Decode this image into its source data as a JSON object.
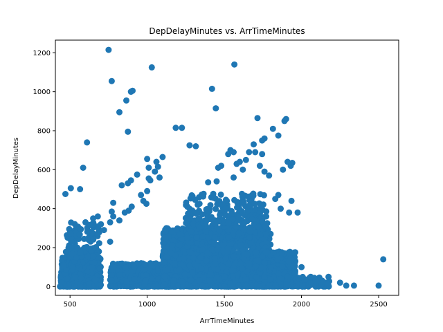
{
  "chart_data": {
    "type": "scatter",
    "title": "DepDelayMinutes vs. ArrTimeMinutes",
    "xlabel": "ArrTimeMinutes",
    "ylabel": "DepDelayMinutes",
    "xlim": [
      405,
      2630
    ],
    "ylim": [
      -45,
      1265
    ],
    "xticks": [
      500,
      1000,
      1500,
      2000,
      2500
    ],
    "yticks": [
      0,
      200,
      400,
      600,
      800,
      1000,
      1200
    ],
    "grid": false,
    "marker_color": "#1f77b4",
    "clusters": [
      {
        "x_range": [
          440,
          700
        ],
        "y_range": [
          0,
          150
        ],
        "count": 700
      },
      {
        "x_range": [
          470,
          690
        ],
        "y_range": [
          150,
          330
        ],
        "count": 120
      },
      {
        "x_range": [
          760,
          1150
        ],
        "y_range": [
          0,
          120
        ],
        "count": 600
      },
      {
        "x_range": [
          1100,
          1800
        ],
        "y_range": [
          0,
          300
        ],
        "count": 1800
      },
      {
        "x_range": [
          1250,
          1780
        ],
        "y_range": [
          250,
          480
        ],
        "count": 400
      },
      {
        "x_range": [
          1700,
          1960
        ],
        "y_range": [
          0,
          180
        ],
        "count": 500
      },
      {
        "x_range": [
          1950,
          2180
        ],
        "y_range": [
          0,
          50
        ],
        "count": 60
      }
    ],
    "points": [
      {
        "x": 750,
        "y": 1215
      },
      {
        "x": 770,
        "y": 1055
      },
      {
        "x": 1030,
        "y": 1125
      },
      {
        "x": 1565,
        "y": 1140
      },
      {
        "x": 895,
        "y": 1000
      },
      {
        "x": 905,
        "y": 1005
      },
      {
        "x": 1420,
        "y": 1015
      },
      {
        "x": 1445,
        "y": 915
      },
      {
        "x": 820,
        "y": 895
      },
      {
        "x": 865,
        "y": 955
      },
      {
        "x": 875,
        "y": 795
      },
      {
        "x": 1185,
        "y": 815
      },
      {
        "x": 1225,
        "y": 815
      },
      {
        "x": 1275,
        "y": 725
      },
      {
        "x": 1315,
        "y": 720
      },
      {
        "x": 610,
        "y": 740
      },
      {
        "x": 585,
        "y": 610
      },
      {
        "x": 470,
        "y": 475
      },
      {
        "x": 505,
        "y": 505
      },
      {
        "x": 565,
        "y": 500
      },
      {
        "x": 1715,
        "y": 865
      },
      {
        "x": 1900,
        "y": 860
      },
      {
        "x": 1890,
        "y": 850
      },
      {
        "x": 1850,
        "y": 775
      },
      {
        "x": 1815,
        "y": 810
      },
      {
        "x": 1760,
        "y": 760
      },
      {
        "x": 1745,
        "y": 750
      },
      {
        "x": 1690,
        "y": 730
      },
      {
        "x": 1910,
        "y": 640
      },
      {
        "x": 1930,
        "y": 620
      },
      {
        "x": 1940,
        "y": 635
      },
      {
        "x": 1880,
        "y": 600
      },
      {
        "x": 1540,
        "y": 700
      },
      {
        "x": 1525,
        "y": 680
      },
      {
        "x": 1560,
        "y": 690
      },
      {
        "x": 1480,
        "y": 620
      },
      {
        "x": 1580,
        "y": 630
      },
      {
        "x": 1600,
        "y": 640
      },
      {
        "x": 1620,
        "y": 600
      },
      {
        "x": 1560,
        "y": 560
      },
      {
        "x": 1640,
        "y": 650
      },
      {
        "x": 1660,
        "y": 690
      },
      {
        "x": 1700,
        "y": 690
      },
      {
        "x": 1730,
        "y": 620
      },
      {
        "x": 1760,
        "y": 590
      },
      {
        "x": 1745,
        "y": 680
      },
      {
        "x": 1790,
        "y": 570
      },
      {
        "x": 1395,
        "y": 535
      },
      {
        "x": 1450,
        "y": 540
      },
      {
        "x": 1460,
        "y": 610
      },
      {
        "x": 1000,
        "y": 655
      },
      {
        "x": 1070,
        "y": 615
      },
      {
        "x": 1100,
        "y": 665
      },
      {
        "x": 1060,
        "y": 640
      },
      {
        "x": 1050,
        "y": 590
      },
      {
        "x": 1010,
        "y": 610
      },
      {
        "x": 1080,
        "y": 560
      },
      {
        "x": 1010,
        "y": 555
      },
      {
        "x": 1020,
        "y": 545
      },
      {
        "x": 935,
        "y": 575
      },
      {
        "x": 895,
        "y": 545
      },
      {
        "x": 875,
        "y": 530
      },
      {
        "x": 835,
        "y": 520
      },
      {
        "x": 1000,
        "y": 490
      },
      {
        "x": 960,
        "y": 470
      },
      {
        "x": 975,
        "y": 440
      },
      {
        "x": 995,
        "y": 425
      },
      {
        "x": 880,
        "y": 390
      },
      {
        "x": 900,
        "y": 410
      },
      {
        "x": 855,
        "y": 380
      },
      {
        "x": 780,
        "y": 430
      },
      {
        "x": 780,
        "y": 360
      },
      {
        "x": 820,
        "y": 340
      },
      {
        "x": 770,
        "y": 385
      },
      {
        "x": 1850,
        "y": 470
      },
      {
        "x": 1935,
        "y": 440
      },
      {
        "x": 1920,
        "y": 380
      },
      {
        "x": 1865,
        "y": 400
      },
      {
        "x": 1830,
        "y": 450
      },
      {
        "x": 1975,
        "y": 380
      },
      {
        "x": 2000,
        "y": 100
      },
      {
        "x": 2060,
        "y": 50
      },
      {
        "x": 2090,
        "y": 30
      },
      {
        "x": 2140,
        "y": 25
      },
      {
        "x": 2170,
        "y": 15
      },
      {
        "x": 2250,
        "y": 20
      },
      {
        "x": 2290,
        "y": 5
      },
      {
        "x": 2340,
        "y": 5
      },
      {
        "x": 2500,
        "y": 5
      },
      {
        "x": 2530,
        "y": 140
      },
      {
        "x": 820,
        "y": 60
      },
      {
        "x": 780,
        "y": 100
      },
      {
        "x": 760,
        "y": 230
      },
      {
        "x": 720,
        "y": 290
      },
      {
        "x": 700,
        "y": 320
      },
      {
        "x": 760,
        "y": 330
      },
      {
        "x": 650,
        "y": 350
      },
      {
        "x": 600,
        "y": 330
      },
      {
        "x": 680,
        "y": 360
      },
      {
        "x": 460,
        "y": 110
      },
      {
        "x": 445,
        "y": 20
      },
      {
        "x": 435,
        "y": 0
      }
    ]
  }
}
